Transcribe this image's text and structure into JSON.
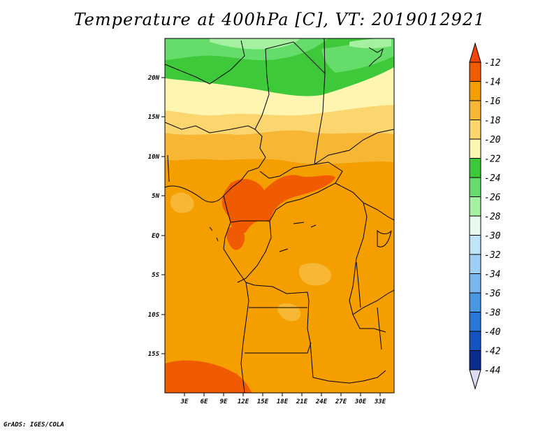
{
  "title": "Temperature at 400hPa [C], VT: 2019012921",
  "credit": "GrADS: IGES/COLA",
  "map": {
    "lat_labels": [
      "20N",
      "15N",
      "10N",
      "5N",
      "EQ",
      "5S",
      "10S",
      "15S"
    ],
    "lon_labels": [
      "3E",
      "6E",
      "9E",
      "12E",
      "15E",
      "18E",
      "21E",
      "24E",
      "27E",
      "30E",
      "33E"
    ]
  },
  "colorbar": {
    "labels": [
      "-12",
      "-14",
      "-16",
      "-18",
      "-20",
      "-22",
      "-24",
      "-26",
      "-28",
      "-30",
      "-32",
      "-34",
      "-36",
      "-38",
      "-40",
      "-42",
      "-44"
    ],
    "colors": [
      "#f05a00",
      "#f59e00",
      "#f7b634",
      "#fbd56e",
      "#fef5b0",
      "#3ec93b",
      "#66dd6a",
      "#a6f0a2",
      "#e6fbef",
      "#bfe4f9",
      "#9ed0f5",
      "#79b8ee",
      "#4a97e4",
      "#2878d8",
      "#1453c0",
      "#0a2a8c"
    ],
    "top_arrow_color": "#f0460a",
    "bottom_arrow_color": "#dcdcf6"
  },
  "palette": {
    "orange_dark": "#f05a00",
    "orange": "#f59e00",
    "orange_light": "#f7b634",
    "yellow": "#fbd56e",
    "pale_yellow": "#fef5b0",
    "green": "#3ec93b",
    "green_mid": "#66dd6a",
    "green_light": "#a6f0a2"
  }
}
